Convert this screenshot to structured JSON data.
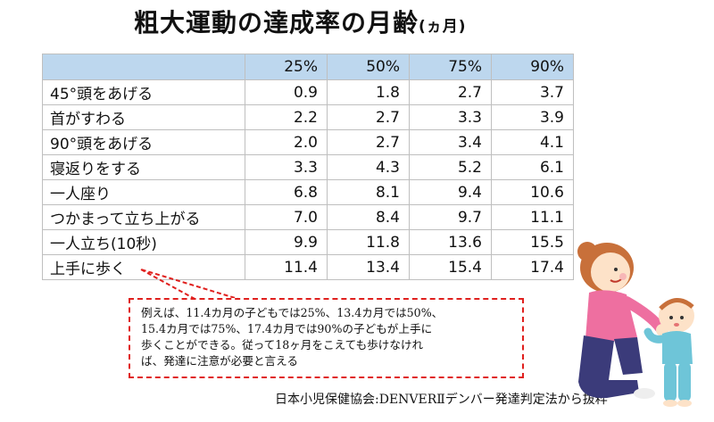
{
  "title": {
    "main": "粗大運動の達成率の月齢",
    "unit": "(ヵ月)"
  },
  "table": {
    "headers": [
      "",
      "25%",
      "50%",
      "75%",
      "90%"
    ],
    "rows": [
      {
        "label": "45°頭をあげる",
        "values": [
          "0.9",
          "1.8",
          "2.7",
          "3.7"
        ]
      },
      {
        "label": "首がすわる",
        "values": [
          "2.2",
          "2.7",
          "3.3",
          "3.9"
        ]
      },
      {
        "label": "90°頭をあげる",
        "values": [
          "2.0",
          "2.7",
          "3.4",
          "4.1"
        ]
      },
      {
        "label": "寝返りをする",
        "values": [
          "3.3",
          "4.3",
          "5.2",
          "6.1"
        ]
      },
      {
        "label": "一人座り",
        "values": [
          "6.8",
          "8.1",
          "9.4",
          "10.6"
        ]
      },
      {
        "label": "つかまって立ち上がる",
        "values": [
          "7.0",
          "8.4",
          "9.7",
          "11.1"
        ]
      },
      {
        "label": "一人立ち(10秒)",
        "values": [
          "9.9",
          "11.8",
          "13.6",
          "15.5"
        ]
      },
      {
        "label": "上手に歩く",
        "values": [
          "11.4",
          "13.4",
          "15.4",
          "17.4"
        ]
      }
    ]
  },
  "note": {
    "lines": [
      "例えば、11.4カ月の子どもでは25%、13.4カ月では50%、",
      "15.4カ月では75%、17.4カ月では90%の子どもが上手に",
      "歩くことができる。従って18ヶ月をこえても歩けなけれ",
      "ば、発達に注意が必要と言える"
    ]
  },
  "source": "日本小児保健協会:DENVERⅡデンバー発達判定法から抜粋",
  "colors": {
    "header_bg": "#bdd7ee",
    "callout_border": "#e0201e",
    "grid": "#bfbfbf"
  },
  "illustration": "mother-helping-baby-walk"
}
